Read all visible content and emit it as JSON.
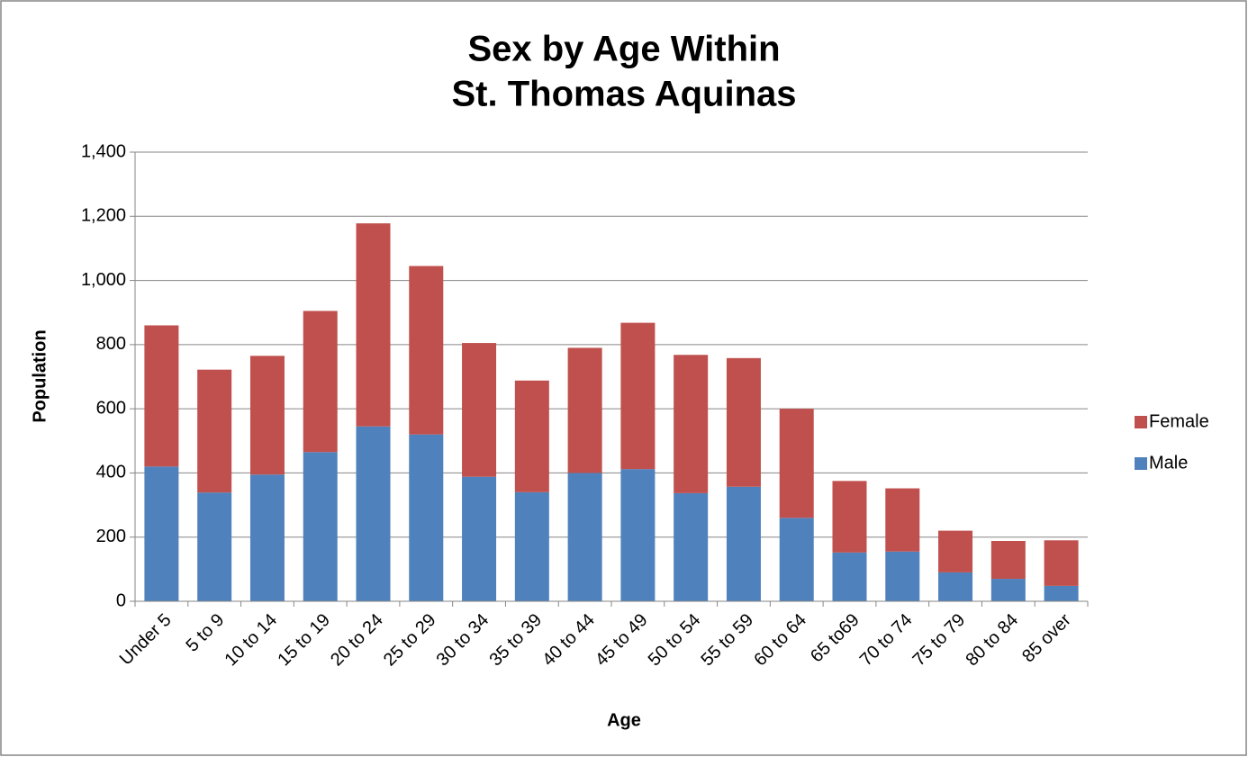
{
  "chart_data": {
    "type": "stacked_bar",
    "title": [
      "Sex by Age Within",
      "St. Thomas Aquinas"
    ],
    "x_label": "Age",
    "y_label": "Population",
    "categories": [
      "Under 5",
      "5 to 9",
      "10 to 14",
      "15 to 19",
      "20 to 24",
      "25 to 29",
      "30 to 34",
      "35 to 39",
      "40 to 44",
      "45 to 49",
      "50 to 54",
      "55 to 59",
      "60 to 64",
      "65 to69",
      "70 to 74",
      "75 to 79",
      "80 to 84",
      "85 over"
    ],
    "series": [
      {
        "name": "Male",
        "color": "#4f81bd",
        "values": [
          420,
          339,
          395,
          465,
          545,
          520,
          388,
          340,
          400,
          412,
          337,
          357,
          260,
          152,
          155,
          90,
          70,
          48
        ]
      },
      {
        "name": "Female",
        "color": "#c0504d",
        "values": [
          440,
          383,
          370,
          440,
          633,
          525,
          417,
          348,
          390,
          456,
          431,
          401,
          340,
          223,
          197,
          130,
          118,
          142
        ]
      }
    ],
    "ylim": [
      0,
      1400
    ],
    "yticks": [
      0,
      200,
      400,
      600,
      800,
      {
        "value": 1000,
        "label": "1,000"
      },
      {
        "value": 1200,
        "label": "1,200"
      },
      {
        "value": 1400,
        "label": "1,400"
      }
    ],
    "grid": true,
    "legend": "right"
  }
}
